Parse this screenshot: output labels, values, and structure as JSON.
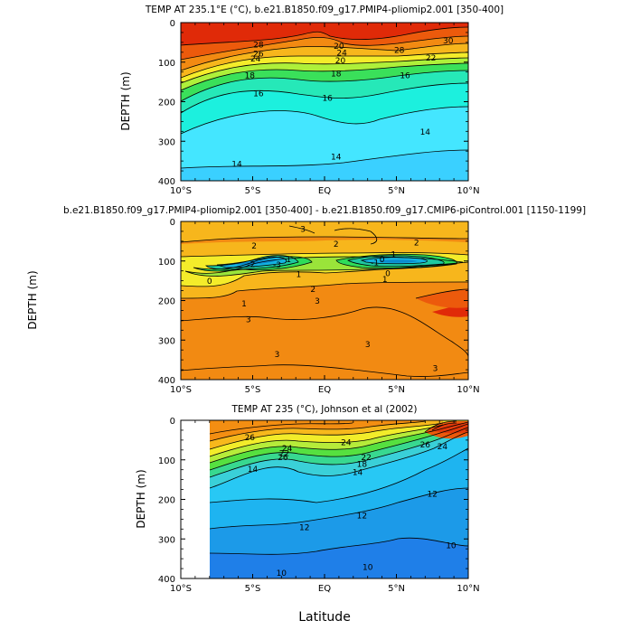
{
  "chart_data": [
    {
      "type": "contour",
      "title": "TEMP AT 235.1°E (°C), b.e21.B1850.f09_g17.PMIP4-pliomip2.001 [350-400]",
      "ylabel": "DEPTH (m)",
      "xlabel": "",
      "x_ticks": [
        "10°S",
        "5°S",
        "EQ",
        "5°N",
        "10°N"
      ],
      "x_range": [
        -10,
        10
      ],
      "y_ticks": [
        "0",
        "100",
        "200",
        "300",
        "400"
      ],
      "y_range": [
        0,
        400
      ],
      "data_gap_left": false,
      "contour_labels": [
        {
          "text": "28",
          "lat": -4.6,
          "depth": 55
        },
        {
          "text": "26",
          "lat": -4.6,
          "depth": 78
        },
        {
          "text": "24",
          "lat": -4.8,
          "depth": 90
        },
        {
          "text": "18",
          "lat": -5.2,
          "depth": 132
        },
        {
          "text": "16",
          "lat": -4.6,
          "depth": 178
        },
        {
          "text": "20",
          "lat": 1.0,
          "depth": 58
        },
        {
          "text": "24",
          "lat": 1.2,
          "depth": 75
        },
        {
          "text": "20",
          "lat": 1.1,
          "depth": 95
        },
        {
          "text": "18",
          "lat": 0.8,
          "depth": 128
        },
        {
          "text": "16",
          "lat": 0.2,
          "depth": 190
        },
        {
          "text": "16",
          "lat": 5.6,
          "depth": 132
        },
        {
          "text": "28",
          "lat": 5.2,
          "depth": 68
        },
        {
          "text": "30",
          "lat": 8.6,
          "depth": 45
        },
        {
          "text": "22",
          "lat": 7.4,
          "depth": 88
        },
        {
          "text": "14",
          "lat": 7.0,
          "depth": 275
        },
        {
          "text": "14",
          "lat": 0.8,
          "depth": 338
        },
        {
          "text": "14",
          "lat": -6.1,
          "depth": 357
        }
      ]
    },
    {
      "type": "contour",
      "title": "b.e21.B1850.f09_g17.PMIP4-pliomip2.001 [350-400] - b.e21.B1850.f09_g17.CMIP6-piControl.001 [1150-1199]",
      "ylabel": "DEPTH (m)",
      "xlabel": "",
      "x_ticks": [
        "10°S",
        "5°S",
        "EQ",
        "5°N",
        "10°N"
      ],
      "x_range": [
        -10,
        10
      ],
      "y_ticks": [
        "0",
        "100",
        "200",
        "300",
        "400"
      ],
      "y_range": [
        0,
        400
      ],
      "data_gap_left": false,
      "contour_labels": [
        {
          "text": "3",
          "lat": -1.5,
          "depth": 18
        },
        {
          "text": "2",
          "lat": -4.9,
          "depth": 60
        },
        {
          "text": "2",
          "lat": 0.8,
          "depth": 56
        },
        {
          "text": "2",
          "lat": 6.4,
          "depth": 52
        },
        {
          "text": "1",
          "lat": -2.5,
          "depth": 95
        },
        {
          "text": "-2",
          "lat": -5.1,
          "depth": 107
        },
        {
          "text": "-3",
          "lat": -3.3,
          "depth": 108
        },
        {
          "text": "-1",
          "lat": 3.5,
          "depth": 103
        },
        {
          "text": "0",
          "lat": 4.0,
          "depth": 95
        },
        {
          "text": "1",
          "lat": 4.8,
          "depth": 82
        },
        {
          "text": "0",
          "lat": -8.0,
          "depth": 150
        },
        {
          "text": "1",
          "lat": -1.8,
          "depth": 133
        },
        {
          "text": "0",
          "lat": 4.4,
          "depth": 130
        },
        {
          "text": "1",
          "lat": 4.2,
          "depth": 145
        },
        {
          "text": "2",
          "lat": -0.8,
          "depth": 170
        },
        {
          "text": "1",
          "lat": -5.6,
          "depth": 207
        },
        {
          "text": "3",
          "lat": -0.5,
          "depth": 200
        },
        {
          "text": "3",
          "lat": -5.3,
          "depth": 247
        },
        {
          "text": "3",
          "lat": -3.3,
          "depth": 335
        },
        {
          "text": "3",
          "lat": 3.0,
          "depth": 310
        },
        {
          "text": "3",
          "lat": 7.7,
          "depth": 370
        }
      ]
    },
    {
      "type": "contour",
      "title": "TEMP AT 235 (°C), Johnson et al (2002)",
      "ylabel": "DEPTH (m)",
      "xlabel": "Latitude",
      "x_ticks": [
        "10°S",
        "5°S",
        "EQ",
        "5°N",
        "10°N"
      ],
      "x_range": [
        -10,
        10
      ],
      "y_ticks": [
        "0",
        "100",
        "200",
        "300",
        "400"
      ],
      "y_range": [
        0,
        400
      ],
      "data_gap_left": true,
      "data_start_lat": -8,
      "contour_labels": [
        {
          "text": "26",
          "lat": -5.2,
          "depth": 42
        },
        {
          "text": "24",
          "lat": -2.6,
          "depth": 70
        },
        {
          "text": "22",
          "lat": -2.8,
          "depth": 82
        },
        {
          "text": "26",
          "lat": -2.9,
          "depth": 92
        },
        {
          "text": "14",
          "lat": -5.0,
          "depth": 122
        },
        {
          "text": "24",
          "lat": 1.5,
          "depth": 55
        },
        {
          "text": "22",
          "lat": 2.9,
          "depth": 92
        },
        {
          "text": "18",
          "lat": 2.6,
          "depth": 110
        },
        {
          "text": "14",
          "lat": 2.3,
          "depth": 130
        },
        {
          "text": "26",
          "lat": 7.0,
          "depth": 60
        },
        {
          "text": "24",
          "lat": 8.2,
          "depth": 65
        },
        {
          "text": "12",
          "lat": 7.5,
          "depth": 185
        },
        {
          "text": "12",
          "lat": -1.4,
          "depth": 270
        },
        {
          "text": "12",
          "lat": 2.6,
          "depth": 240
        },
        {
          "text": "10",
          "lat": 8.8,
          "depth": 315
        },
        {
          "text": "10",
          "lat": 3.0,
          "depth": 370
        },
        {
          "text": "10",
          "lat": -3.0,
          "depth": 385
        }
      ]
    }
  ]
}
